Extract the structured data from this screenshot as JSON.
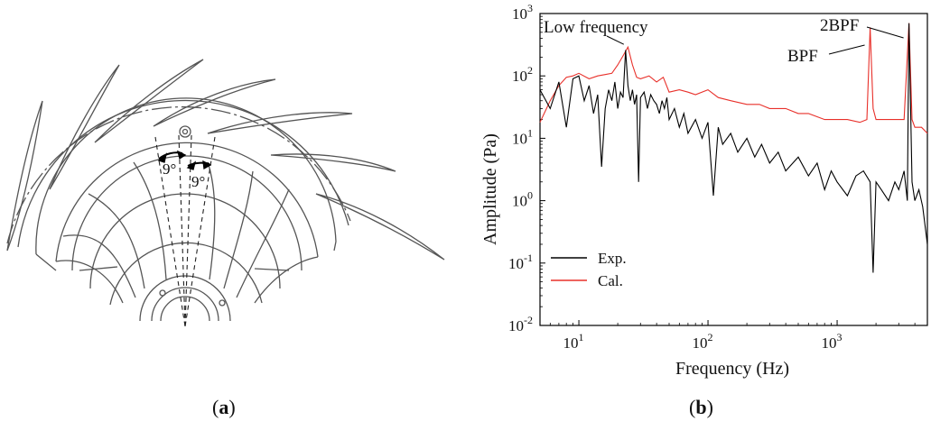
{
  "panel_a": {
    "caption_open": "(",
    "caption_letter": "a",
    "caption_close": ")",
    "angle_left": "9°",
    "angle_right": "9°"
  },
  "panel_b": {
    "caption_open": "(",
    "caption_letter": "b",
    "caption_close": ")"
  },
  "colors": {
    "exp": "#000000",
    "cal": "#e8302a",
    "cal_dense": "#b00000"
  },
  "chart_data": {
    "type": "line",
    "xlabel": "Frequency (Hz)",
    "ylabel": "Amplitude (Pa)",
    "x_scale": "log",
    "y_scale": "log",
    "xlim": [
      5,
      5000
    ],
    "ylim": [
      0.01,
      1000
    ],
    "x_ticks": [
      {
        "value": 10,
        "base": "10",
        "exp": "1"
      },
      {
        "value": 100,
        "base": "10",
        "exp": "2"
      },
      {
        "value": 1000,
        "base": "10",
        "exp": "3"
      }
    ],
    "y_ticks": [
      {
        "value": 0.01,
        "base": "10",
        "exp": "-2"
      },
      {
        "value": 0.1,
        "base": "10",
        "exp": "-1"
      },
      {
        "value": 1,
        "base": "10",
        "exp": "0"
      },
      {
        "value": 10,
        "base": "10",
        "exp": "1"
      },
      {
        "value": 100,
        "base": "10",
        "exp": "2"
      },
      {
        "value": 1000,
        "base": "10",
        "exp": "3"
      }
    ],
    "legend_position": "bottom-left",
    "series": [
      {
        "name": "Exp.",
        "color": "#000000",
        "x": [
          5,
          6,
          7,
          8,
          9,
          10,
          11,
          12,
          13,
          14,
          15,
          16,
          17,
          18,
          19,
          20,
          21,
          22,
          23,
          24,
          25,
          26,
          27,
          28,
          29,
          30,
          32,
          34,
          36,
          38,
          40,
          42,
          44,
          46,
          48,
          50,
          55,
          60,
          65,
          70,
          80,
          90,
          100,
          110,
          120,
          130,
          150,
          170,
          200,
          230,
          260,
          300,
          350,
          400,
          500,
          600,
          700,
          800,
          900,
          1000,
          1200,
          1400,
          1600,
          1800,
          1900,
          2000,
          2200,
          2500,
          2800,
          3000,
          3300,
          3500,
          3600,
          3800,
          4000,
          4300,
          4600,
          5000
        ],
        "y": [
          60,
          30,
          80,
          15,
          90,
          100,
          40,
          70,
          25,
          50,
          3.5,
          30,
          60,
          40,
          80,
          30,
          55,
          45,
          260,
          70,
          40,
          60,
          35,
          50,
          2,
          45,
          55,
          30,
          50,
          40,
          35,
          25,
          40,
          30,
          45,
          20,
          30,
          15,
          25,
          12,
          20,
          10,
          18,
          1.2,
          15,
          8,
          12,
          6,
          10,
          5,
          8,
          4,
          6,
          3,
          5,
          2.5,
          4,
          1.5,
          3,
          2,
          1.2,
          2.5,
          3,
          2,
          0.07,
          2,
          1.5,
          1,
          2,
          1.5,
          3,
          1,
          700,
          2,
          1,
          1.5,
          0.8,
          0.2
        ]
      },
      {
        "name": "Cal.",
        "color": "#e8302a",
        "x": [
          5,
          6,
          7,
          8,
          9,
          10,
          12,
          14,
          16,
          18,
          20,
          22,
          24,
          26,
          28,
          30,
          35,
          40,
          45,
          50,
          60,
          70,
          80,
          100,
          120,
          150,
          200,
          250,
          300,
          400,
          500,
          600,
          800,
          1000,
          1200,
          1500,
          1700,
          1800,
          1900,
          2000,
          2300,
          2600,
          3000,
          3300,
          3600,
          3800,
          4000,
          4500,
          5000
        ],
        "y": [
          18,
          40,
          70,
          95,
          100,
          110,
          90,
          100,
          105,
          110,
          150,
          210,
          290,
          150,
          95,
          90,
          100,
          80,
          95,
          55,
          60,
          55,
          50,
          60,
          45,
          40,
          35,
          35,
          30,
          30,
          25,
          25,
          20,
          20,
          20,
          18,
          20,
          600,
          30,
          20,
          20,
          20,
          20,
          20,
          700,
          20,
          15,
          15,
          12
        ]
      }
    ],
    "annotations": [
      {
        "text": "Low frequency",
        "x": 23,
        "y": 290
      },
      {
        "text": "BPF",
        "x": 1800,
        "y": 600
      },
      {
        "text": "2BPF",
        "x": 3600,
        "y": 700
      }
    ]
  }
}
